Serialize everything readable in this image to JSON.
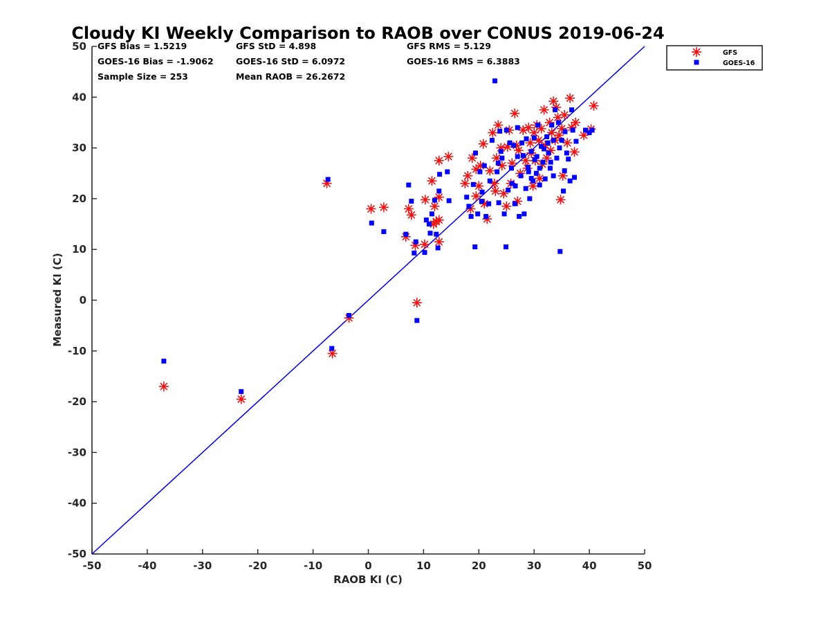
{
  "chart_data": {
    "type": "scatter",
    "title": "Cloudy KI Weekly Comparison to RAOB over CONUS 2019-06-24",
    "xlabel": "RAOB KI (C)",
    "ylabel": "Measured KI (C)",
    "xlim": [
      -50,
      50
    ],
    "ylim": [
      -50,
      50
    ],
    "xticks": [
      "-50",
      "-40",
      "-30",
      "-20",
      "-10",
      "0",
      "10",
      "20",
      "30",
      "40",
      "50"
    ],
    "yticks": [
      "-50",
      "-40",
      "-30",
      "-20",
      "-10",
      "0",
      "10",
      "20",
      "30",
      "40",
      "50"
    ],
    "grid": false,
    "legend_position": "top-right outside",
    "reference_line": {
      "from": [
        -50,
        -50
      ],
      "to": [
        50,
        50
      ],
      "color": "#0000dd",
      "label": "1:1 line"
    },
    "stats": [
      "GFS Bias = 1.5219",
      "GFS StD = 4.898",
      "GFS RMS = 5.129",
      "GOES-16 Bias = -1.9062",
      "GOES-16 StD = 6.0972",
      "GOES-16 RMS = 6.3883",
      "Sample Size = 253",
      "Mean RAOB = 26.2672"
    ],
    "series": [
      {
        "name": "GFS",
        "marker": "asterisk",
        "color": "#ee1111",
        "points": [
          [
            -37,
            -17
          ],
          [
            -23,
            -19.5
          ],
          [
            -7.5,
            23
          ],
          [
            -6.5,
            -10.5
          ],
          [
            -3.5,
            -3.5
          ],
          [
            0.5,
            18
          ],
          [
            2.8,
            18.3
          ],
          [
            6.8,
            12.5
          ],
          [
            7.3,
            18
          ],
          [
            7.8,
            16.8
          ],
          [
            8.5,
            10.8
          ],
          [
            8.8,
            -0.5
          ],
          [
            10.2,
            11
          ],
          [
            10.3,
            19.8
          ],
          [
            11.5,
            23.5
          ],
          [
            11.8,
            15
          ],
          [
            12,
            18.5
          ],
          [
            12.3,
            15.5
          ],
          [
            12.8,
            11.5
          ],
          [
            12.8,
            15.8
          ],
          [
            12.8,
            20.3
          ],
          [
            12.8,
            27.5
          ],
          [
            14.5,
            28.3
          ],
          [
            17.5,
            23
          ],
          [
            18,
            24.5
          ],
          [
            18.5,
            18
          ],
          [
            18.8,
            28
          ],
          [
            19.5,
            25.8
          ],
          [
            19.5,
            20.5
          ],
          [
            20,
            22.5
          ],
          [
            20.3,
            26.5
          ],
          [
            20.8,
            30.8
          ],
          [
            21,
            19
          ],
          [
            21.5,
            16
          ],
          [
            22.5,
            33
          ],
          [
            22.8,
            23
          ],
          [
            23.2,
            28
          ],
          [
            23.5,
            34.5
          ],
          [
            24,
            30
          ],
          [
            24.5,
            21
          ],
          [
            25,
            18.5
          ],
          [
            25.5,
            33.5
          ],
          [
            25.8,
            23
          ],
          [
            26.5,
            36.8
          ],
          [
            26.8,
            30.5
          ],
          [
            27,
            19.5
          ],
          [
            27.5,
            25
          ],
          [
            28,
            33.5
          ],
          [
            28.5,
            27.5
          ],
          [
            29,
            34
          ],
          [
            29.3,
            31
          ],
          [
            29.5,
            29
          ],
          [
            30,
            33
          ],
          [
            30.5,
            34.5
          ],
          [
            30.8,
            31.5
          ],
          [
            31,
            24
          ],
          [
            31.3,
            33.8
          ],
          [
            31.8,
            37.5
          ],
          [
            32,
            30.5
          ],
          [
            32.3,
            28
          ],
          [
            32.8,
            35
          ],
          [
            33.2,
            33
          ],
          [
            33.5,
            39.2
          ],
          [
            33.8,
            31.5
          ],
          [
            34,
            38
          ],
          [
            34.3,
            36
          ],
          [
            34.8,
            19.8
          ],
          [
            35,
            33.8
          ],
          [
            35.2,
            24.5
          ],
          [
            35.5,
            36.5
          ],
          [
            36,
            31
          ],
          [
            36.5,
            39.8
          ],
          [
            36.8,
            34
          ],
          [
            37.3,
            29.2
          ],
          [
            37.5,
            35
          ],
          [
            39,
            32.5
          ],
          [
            40.3,
            33.7
          ],
          [
            40.8,
            38.3
          ],
          [
            26,
            27
          ],
          [
            27.2,
            29.5
          ],
          [
            28.8,
            26
          ],
          [
            30.2,
            27.5
          ],
          [
            33,
            29.5
          ],
          [
            22,
            25.5
          ],
          [
            24.2,
            26.5
          ],
          [
            25.2,
            30.2
          ],
          [
            29.8,
            22.5
          ],
          [
            31.5,
            26.8
          ],
          [
            34.5,
            32.5
          ],
          [
            23,
            21.5
          ]
        ]
      },
      {
        "name": "GOES-16",
        "marker": "square",
        "color": "#0000ff",
        "points": [
          [
            -37,
            -12
          ],
          [
            -23,
            -18
          ],
          [
            -7.3,
            23.8
          ],
          [
            -6.6,
            -9.5
          ],
          [
            -3.5,
            -3
          ],
          [
            0.6,
            15.2
          ],
          [
            2.8,
            13.5
          ],
          [
            6.8,
            13
          ],
          [
            7.3,
            22.7
          ],
          [
            7.8,
            19.5
          ],
          [
            8.3,
            9.3
          ],
          [
            8.6,
            11.5
          ],
          [
            8.8,
            -4
          ],
          [
            10.2,
            9.4
          ],
          [
            10.5,
            15.8
          ],
          [
            11,
            15
          ],
          [
            11.2,
            13.2
          ],
          [
            11.5,
            17
          ],
          [
            12,
            19.7
          ],
          [
            12.3,
            13
          ],
          [
            12.6,
            10.3
          ],
          [
            12.8,
            21.5
          ],
          [
            12.9,
            24.8
          ],
          [
            14.3,
            25.3
          ],
          [
            14.6,
            19.6
          ],
          [
            17.8,
            20.3
          ],
          [
            18.2,
            18.5
          ],
          [
            18.6,
            16.5
          ],
          [
            19,
            22.8
          ],
          [
            19.3,
            10.5
          ],
          [
            19.4,
            29
          ],
          [
            19.8,
            17
          ],
          [
            20.2,
            25.3
          ],
          [
            20.6,
            21.3
          ],
          [
            21.3,
            16.5
          ],
          [
            21.8,
            19
          ],
          [
            22.4,
            31.5
          ],
          [
            22.9,
            43.2
          ],
          [
            23.3,
            25.3
          ],
          [
            23.6,
            19.2
          ],
          [
            23.8,
            33.3
          ],
          [
            24.2,
            28
          ],
          [
            24.6,
            17
          ],
          [
            24.9,
            10.5
          ],
          [
            25.3,
            21.7
          ],
          [
            25.6,
            31
          ],
          [
            25.9,
            26
          ],
          [
            26.3,
            30.5
          ],
          [
            26.6,
            22.5
          ],
          [
            27,
            34
          ],
          [
            27.3,
            16.5
          ],
          [
            27.6,
            24.5
          ],
          [
            28,
            28.5
          ],
          [
            28.2,
            17
          ],
          [
            28.6,
            31.8
          ],
          [
            28.9,
            26.2
          ],
          [
            29.2,
            20
          ],
          [
            29.5,
            29.3
          ],
          [
            29.8,
            23.5
          ],
          [
            30.1,
            27.7
          ],
          [
            30.4,
            25
          ],
          [
            30.7,
            34.5
          ],
          [
            31,
            22.7
          ],
          [
            31.3,
            30.3
          ],
          [
            31.6,
            27.2
          ],
          [
            32,
            23.9
          ],
          [
            32.3,
            32.2
          ],
          [
            32.6,
            29
          ],
          [
            32.9,
            26
          ],
          [
            33.2,
            34.5
          ],
          [
            33.5,
            31.5
          ],
          [
            33.8,
            37.5
          ],
          [
            34.1,
            28
          ],
          [
            34.4,
            35
          ],
          [
            34.7,
            9.6
          ],
          [
            35,
            31.5
          ],
          [
            35.3,
            21.5
          ],
          [
            35.6,
            33.2
          ],
          [
            35.9,
            29
          ],
          [
            36.2,
            27.8
          ],
          [
            36.5,
            23.5
          ],
          [
            36.8,
            37.5
          ],
          [
            37,
            33.5
          ],
          [
            37.3,
            24.2
          ],
          [
            37.6,
            31.3
          ],
          [
            39.3,
            33.5
          ],
          [
            40,
            33
          ],
          [
            40.5,
            33.5
          ],
          [
            21,
            26.5
          ],
          [
            22,
            23.5
          ],
          [
            24,
            29.3
          ],
          [
            26.5,
            19
          ],
          [
            27.8,
            31
          ],
          [
            29,
            25.3
          ],
          [
            30.5,
            28.3
          ],
          [
            31.8,
            29.8
          ],
          [
            33,
            27.2
          ],
          [
            34.6,
            30
          ],
          [
            25,
            33.5
          ],
          [
            28.5,
            22
          ],
          [
            30,
            32
          ],
          [
            32.5,
            31
          ],
          [
            35.5,
            25.5
          ],
          [
            20.5,
            19.5
          ],
          [
            23.5,
            27
          ],
          [
            26,
            23
          ],
          [
            27,
            28.3
          ],
          [
            29.5,
            24
          ],
          [
            31,
            26
          ],
          [
            33.5,
            24.5
          ]
        ]
      }
    ]
  },
  "legend": {
    "items": [
      {
        "label": "GFS",
        "marker": "asterisk",
        "color": "#ee1111"
      },
      {
        "label": "GOES-16",
        "marker": "square",
        "color": "#0000ff"
      }
    ]
  },
  "colors": {
    "axis": "#262626",
    "gfs": "#ee1111",
    "goes": "#0000ff",
    "line": "#0000dd"
  }
}
